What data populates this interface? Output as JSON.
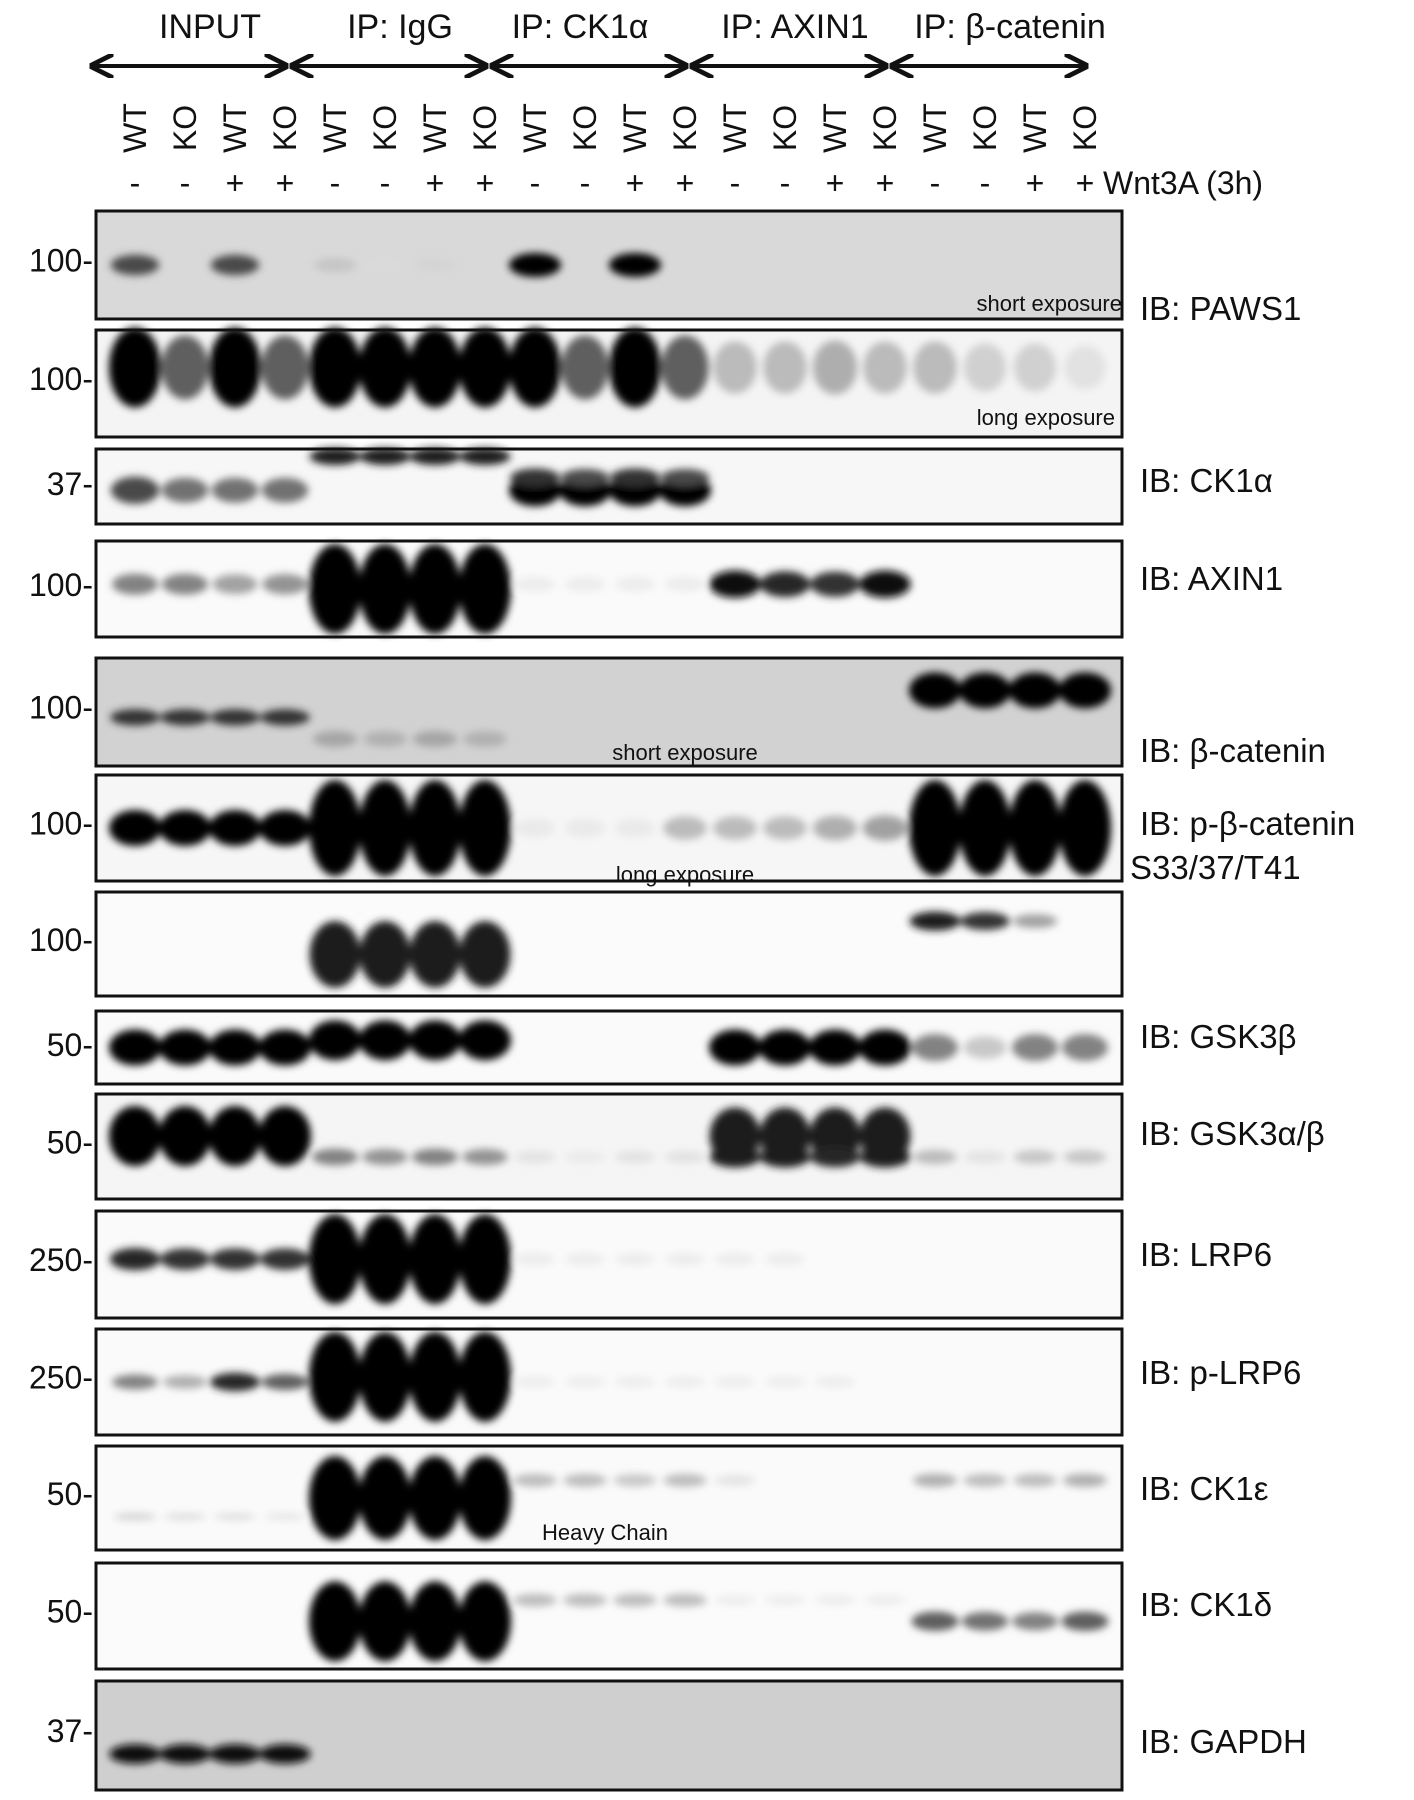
{
  "groups": [
    "INPUT",
    "IP: IgG",
    "IP: CK1α",
    "IP: AXIN1",
    "IP: β-catenin"
  ],
  "genotypes": [
    "WT",
    "KO",
    "WT",
    "KO",
    "WT",
    "KO",
    "WT",
    "KO",
    "WT",
    "KO",
    "WT",
    "KO",
    "WT",
    "KO",
    "WT",
    "KO",
    "WT",
    "KO",
    "WT",
    "KO"
  ],
  "treatment": [
    "-",
    "-",
    "+",
    "+",
    "-",
    "-",
    "+",
    "+",
    "-",
    "-",
    "+",
    "+",
    "-",
    "-",
    "+",
    "+",
    "-",
    "-",
    "+",
    "+"
  ],
  "treatment_label": "Wnt3A (3h)",
  "panels": [
    {
      "marker": "100-",
      "label": "IB: PAWS1",
      "note": "short exposure",
      "bg": "#d9d9d9",
      "bands": [
        {
          "intensity": [
            0.7,
            0,
            0.7,
            0,
            0.2,
            0.05,
            0.1,
            0,
            1,
            0,
            1,
            0,
            0,
            0,
            0,
            0,
            0,
            0,
            0,
            0
          ]
        }
      ]
    },
    {
      "marker": "100-",
      "label": "",
      "note": "long exposure",
      "bg": "#f4f4f4",
      "bands": [
        {
          "intensity": [
            1,
            0.6,
            1,
            0.6,
            1,
            1,
            1,
            1,
            1,
            0.6,
            1,
            0.6,
            0.3,
            0.3,
            0.35,
            0.3,
            0.3,
            0.2,
            0.2,
            0.1
          ]
        }
      ]
    },
    {
      "marker": "37-",
      "label": "IB: CK1α",
      "note": "",
      "bg": "#f7f7f7",
      "bands": [
        {
          "intensity": [
            0.7,
            0.55,
            0.55,
            0.55,
            0,
            0,
            0,
            0,
            1,
            1,
            1,
            1,
            0,
            0,
            0,
            0,
            0,
            0,
            0,
            0
          ]
        },
        {
          "intensity": [
            0,
            0,
            0,
            0,
            0.9,
            0.9,
            0.9,
            0.9,
            0,
            0,
            0,
            0,
            0,
            0,
            0,
            0,
            0,
            0,
            0,
            0
          ]
        },
        {
          "intensity": [
            0,
            0,
            0,
            0,
            0,
            0,
            0,
            0,
            0.8,
            0.7,
            0.8,
            0.7,
            0,
            0,
            0,
            0,
            0,
            0,
            0,
            0
          ]
        }
      ]
    },
    {
      "marker": "100-",
      "label": "IB: AXIN1",
      "note": "",
      "bg": "#fafafa",
      "bands": [
        {
          "intensity": [
            0.5,
            0.5,
            0.4,
            0.45,
            0,
            0,
            0,
            0,
            0.05,
            0.05,
            0.05,
            0.05,
            0.95,
            0.85,
            0.8,
            0.95,
            0,
            0,
            0,
            0
          ]
        },
        {
          "intensity": [
            0,
            0,
            0,
            0,
            1,
            1,
            1,
            1,
            0,
            0,
            0,
            0,
            0,
            0,
            0,
            0,
            0,
            0,
            0,
            0
          ]
        }
      ]
    },
    {
      "marker": "100-",
      "label": "IB: β-catenin",
      "note": "short exposure",
      "bg": "#d2d2d2",
      "bands": [
        {
          "intensity": [
            0.8,
            0.8,
            0.8,
            0.8,
            0,
            0,
            0,
            0,
            0,
            0,
            0,
            0,
            0,
            0,
            0,
            0,
            0,
            0,
            0,
            0
          ]
        },
        {
          "intensity": [
            0,
            0,
            0,
            0,
            0.35,
            0.3,
            0.35,
            0.3,
            0,
            0,
            0,
            0,
            0,
            0,
            0,
            0,
            0,
            0,
            0,
            0
          ]
        },
        {
          "intensity": [
            0,
            0,
            0,
            0,
            0,
            0,
            0,
            0,
            0,
            0,
            0,
            0,
            0,
            0,
            0,
            0,
            1,
            1,
            1,
            1
          ]
        }
      ]
    },
    {
      "marker": "100-",
      "label": "",
      "note": "long exposure",
      "bg": "#f6f6f6",
      "bands": [
        {
          "intensity": [
            1,
            1,
            1,
            1,
            0,
            0,
            0,
            0,
            0.05,
            0.05,
            0.05,
            0.3,
            0.3,
            0.3,
            0.35,
            0.4,
            0,
            0,
            0,
            0
          ]
        },
        {
          "intensity": [
            0,
            0,
            0,
            0,
            1,
            1,
            1,
            1,
            0,
            0,
            0,
            0,
            0,
            0,
            0,
            0,
            1,
            1,
            1,
            1
          ]
        }
      ]
    },
    {
      "marker": "100-",
      "label": "IB: p-β-catenin",
      "label2": "S33/37/T41",
      "note": "",
      "bg": "#fbfbfb",
      "bands": [
        {
          "intensity": [
            0,
            0,
            0,
            0,
            0.9,
            0.9,
            0.9,
            0.9,
            0,
            0,
            0,
            0,
            0,
            0,
            0,
            0,
            0,
            0,
            0,
            0
          ]
        },
        {
          "intensity": [
            0,
            0,
            0,
            0,
            0,
            0,
            0,
            0,
            0,
            0,
            0,
            0,
            0,
            0,
            0,
            0,
            0.9,
            0.8,
            0.4,
            0
          ]
        }
      ]
    },
    {
      "marker": "50-",
      "label": "IB: GSK3β",
      "note": "",
      "bg": "#fafafa",
      "bands": [
        {
          "intensity": [
            1,
            1,
            1,
            1,
            0,
            0,
            0,
            0,
            0,
            0,
            0,
            0,
            1,
            1,
            1,
            1,
            0.5,
            0.25,
            0.5,
            0.5
          ]
        },
        {
          "intensity": [
            0,
            0,
            0,
            0,
            1,
            1,
            1,
            1,
            0,
            0,
            0,
            0,
            0,
            0,
            0,
            0,
            0,
            0,
            0,
            0
          ]
        }
      ]
    },
    {
      "marker": "50-",
      "label": "IB: GSK3α/β",
      "note": "",
      "bg": "#f5f5f5",
      "bands": [
        {
          "intensity": [
            1,
            1,
            1,
            1,
            0,
            0,
            0,
            0,
            0,
            0,
            0,
            0,
            0.9,
            0.9,
            0.9,
            0.9,
            0,
            0,
            0,
            0
          ]
        },
        {
          "intensity": [
            0,
            0,
            0,
            0,
            0.5,
            0.45,
            0.5,
            0.45,
            0.1,
            0.05,
            0.1,
            0.1,
            0.9,
            0.9,
            0.85,
            0.9,
            0.3,
            0.1,
            0.25,
            0.25
          ]
        }
      ]
    },
    {
      "marker": "250-",
      "label": "IB: LRP6",
      "note": "",
      "bg": "#fafafa",
      "bands": [
        {
          "intensity": [
            0.85,
            0.8,
            0.8,
            0.8,
            0,
            0,
            0,
            0,
            0.05,
            0.05,
            0.05,
            0.05,
            0.05,
            0.05,
            0,
            0,
            0,
            0,
            0,
            0
          ]
        },
        {
          "intensity": [
            0,
            0,
            0,
            0,
            1,
            1,
            1,
            1,
            0,
            0,
            0,
            0,
            0,
            0,
            0,
            0,
            0,
            0,
            0,
            0
          ]
        }
      ]
    },
    {
      "marker": "250-",
      "label": "IB: p-LRP6",
      "note": "",
      "bg": "#fafafa",
      "bands": [
        {
          "intensity": [
            0.5,
            0.35,
            0.85,
            0.6,
            0,
            0,
            0,
            0,
            0.05,
            0.05,
            0.05,
            0.05,
            0.05,
            0.05,
            0.05,
            0,
            0,
            0,
            0,
            0
          ]
        },
        {
          "intensity": [
            0,
            0,
            0,
            0,
            1,
            1,
            1,
            1,
            0,
            0,
            0,
            0,
            0,
            0,
            0,
            0,
            0,
            0,
            0,
            0
          ]
        }
      ]
    },
    {
      "marker": "50-",
      "label": "IB: CK1ε",
      "note": "Heavy Chain",
      "bg": "#fafafa",
      "bands": [
        {
          "intensity": [
            0.2,
            0.15,
            0.15,
            0.1,
            0,
            0,
            0,
            0,
            0,
            0,
            0,
            0,
            0,
            0,
            0,
            0,
            0,
            0,
            0,
            0
          ]
        },
        {
          "intensity": [
            0,
            0,
            0,
            0,
            1,
            1,
            1,
            1,
            0,
            0,
            0,
            0,
            0,
            0,
            0,
            0,
            0,
            0,
            0,
            0
          ]
        },
        {
          "intensity": [
            0,
            0,
            0,
            0,
            0,
            0,
            0,
            0,
            0.3,
            0.3,
            0.25,
            0.3,
            0.1,
            0,
            0,
            0,
            0.35,
            0.3,
            0.3,
            0.35
          ]
        }
      ]
    },
    {
      "marker": "50-",
      "label": "IB: CK1δ",
      "note": "",
      "bg": "#fbfbfb",
      "bands": [
        {
          "intensity": [
            0,
            0,
            0,
            0,
            1,
            1,
            1,
            1,
            0,
            0,
            0,
            0,
            0,
            0,
            0,
            0,
            0,
            0,
            0,
            0
          ]
        },
        {
          "intensity": [
            0,
            0,
            0,
            0,
            0,
            0,
            0,
            0,
            0.3,
            0.3,
            0.3,
            0.3,
            0.05,
            0.05,
            0.05,
            0.05,
            0,
            0,
            0,
            0
          ]
        },
        {
          "intensity": [
            0,
            0,
            0,
            0,
            0,
            0,
            0,
            0,
            0,
            0,
            0,
            0,
            0,
            0,
            0,
            0,
            0.6,
            0.55,
            0.5,
            0.6
          ]
        }
      ]
    },
    {
      "marker": "37-",
      "label": "IB: GAPDH",
      "note": "",
      "bg": "#cfcfcf",
      "bands": [
        {
          "intensity": [
            0.95,
            0.95,
            0.95,
            0.95,
            0,
            0,
            0,
            0,
            0,
            0,
            0,
            0,
            0,
            0,
            0,
            0,
            0,
            0,
            0,
            0
          ]
        }
      ]
    }
  ]
}
